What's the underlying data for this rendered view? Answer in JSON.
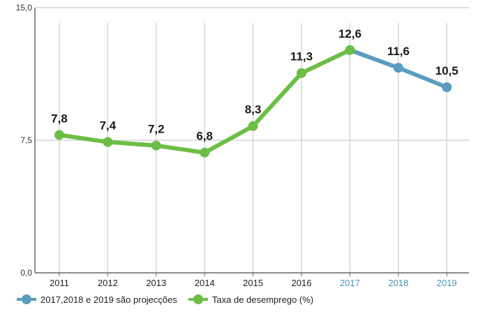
{
  "chart_data": {
    "type": "line",
    "categories": [
      "2011",
      "2012",
      "2013",
      "2014",
      "2015",
      "2016",
      "2017",
      "2018",
      "2019"
    ],
    "projection_categories": [
      "2017",
      "2018",
      "2019"
    ],
    "series": [
      {
        "name": "Taxa de desemprego (%)",
        "color": "#6cbe45",
        "x": [
          "2011",
          "2012",
          "2013",
          "2014",
          "2015",
          "2016",
          "2017"
        ],
        "values": [
          7.8,
          7.4,
          7.2,
          6.8,
          8.3,
          11.3,
          12.6
        ]
      },
      {
        "name": "2017,2018 e 2019 são projecções",
        "color": "#5b9cc0",
        "x": [
          "2017",
          "2018",
          "2019"
        ],
        "values": [
          12.6,
          11.6,
          10.5
        ]
      }
    ],
    "data_labels": [
      "7,8",
      "7,4",
      "7,2",
      "6,8",
      "8,3",
      "11,3",
      "12,6",
      "11,6",
      "10,5"
    ],
    "y_ticks": [
      {
        "value": 0,
        "label": "0,0"
      },
      {
        "value": 7.5,
        "label": "7,5"
      },
      {
        "value": 15,
        "label": "15,0"
      }
    ],
    "ylim": [
      0,
      15
    ],
    "grid": "horizontal and vertical",
    "legend": "bottom-left",
    "colors": {
      "axis": "#666666",
      "grid": "#cccccc",
      "projection_tick": "#4a90b8",
      "tick": "#222222"
    }
  },
  "legend": {
    "projection_label": "2017,2018 e 2019 são projecções",
    "rate_label": "Taxa de desemprego (%)"
  }
}
